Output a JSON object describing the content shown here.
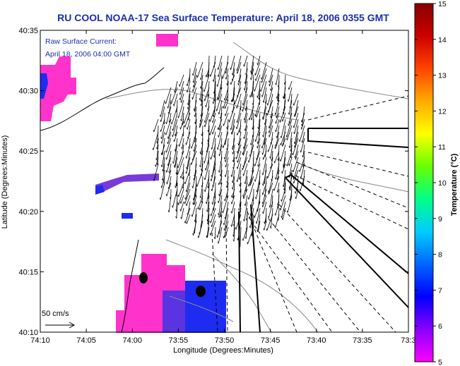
{
  "chart_data": {
    "type": "map",
    "title": "RU COOL  NOAA-17 Sea Surface Temperature:  April 18, 2006 0355 GMT",
    "xlabel": "Longitude (Degrees:Minutes)",
    "ylabel": "Latitude (Degrees:Minutes)",
    "x_ticks": [
      "74:10",
      "74:05",
      "74:00",
      "73:55",
      "73:50",
      "73:45",
      "73:40",
      "73:35",
      "73:3"
    ],
    "y_ticks": [
      "40:10",
      "40:15",
      "40:20",
      "40:25",
      "40:30",
      "40:35"
    ],
    "xlim_minutes_west": [
      10,
      -33
    ],
    "ylim": [
      "40:10",
      "40:35"
    ],
    "annotation_line1": "Raw Surface Current:",
    "annotation_line2": "April 18, 2006 04:00 GMT",
    "scale_label": "50 cm/s",
    "colorbar": {
      "label": "Temperature (°C)",
      "ticks": [
        "5",
        "6",
        "7",
        "8",
        "9",
        "10",
        "11",
        "12",
        "13",
        "14",
        "15"
      ],
      "range": [
        5,
        15
      ],
      "colors": [
        "#ff00ff",
        "#8800ff",
        "#0000ff",
        "#0066ff",
        "#00ccff",
        "#00ff88",
        "#66ff00",
        "#ffff00",
        "#ffaa00",
        "#ff4400",
        "#cc0000",
        "#880000"
      ]
    },
    "current_field_direction": "southward / south-southwest",
    "sst_patches_note": ""
  },
  "colors": {
    "title": "#1a2fb0",
    "annotation": "#1a2fb0",
    "magenta": "#ff33cc",
    "blue": "#1d2cf0",
    "purple": "#7a3ad8"
  }
}
